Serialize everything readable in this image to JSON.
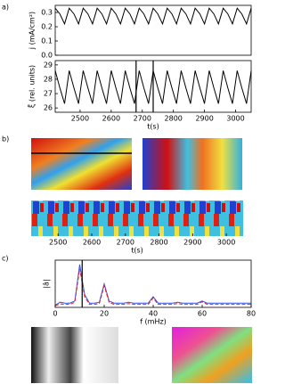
{
  "panel_labels": [
    "a)",
    "b)",
    "c)"
  ],
  "chart_data": [
    {
      "type": "line",
      "y_label": "j (mA/cm²)",
      "x": [
        2420,
        2435,
        2450,
        2465,
        2480,
        2495,
        2510,
        2525,
        2540,
        2555,
        2570,
        2585,
        2600,
        2615,
        2630,
        2645,
        2660,
        2675,
        2690,
        2705,
        2720,
        2735,
        2750,
        2765,
        2780,
        2795,
        2810,
        2825,
        2840,
        2855,
        2870,
        2885,
        2900,
        2915,
        2930,
        2945,
        2960,
        2975,
        2990,
        3005,
        3020,
        3035,
        3050
      ],
      "series": [
        {
          "color": "#000000",
          "values": [
            0.33,
            0.29,
            0.22,
            0.33,
            0.29,
            0.22,
            0.33,
            0.29,
            0.22,
            0.33,
            0.29,
            0.22,
            0.33,
            0.29,
            0.22,
            0.33,
            0.29,
            0.22,
            0.33,
            0.29,
            0.22,
            0.33,
            0.29,
            0.22,
            0.33,
            0.29,
            0.22,
            0.33,
            0.29,
            0.22,
            0.33,
            0.29,
            0.22,
            0.33,
            0.29,
            0.22,
            0.33,
            0.29,
            0.22,
            0.33,
            0.29,
            0.22,
            0.33
          ]
        }
      ],
      "xlim": [
        2420,
        3050
      ],
      "ylim": [
        0,
        0.35
      ],
      "yticks": [
        {
          "value": 0,
          "label": "0.0"
        },
        0.1,
        0.2,
        0.3
      ]
    },
    {
      "type": "line",
      "y_label": "ξ̃ (rel. units)",
      "x_label": "t(s)",
      "x": [
        2420,
        2435,
        2450,
        2465,
        2480,
        2495,
        2510,
        2525,
        2540,
        2555,
        2570,
        2585,
        2600,
        2615,
        2630,
        2645,
        2660,
        2675,
        2690,
        2705,
        2720,
        2735,
        2750,
        2765,
        2780,
        2795,
        2810,
        2825,
        2840,
        2855,
        2870,
        2885,
        2900,
        2915,
        2930,
        2945,
        2960,
        2975,
        2990,
        3005,
        3020,
        3035,
        3050
      ],
      "series": [
        {
          "color": "#000000",
          "values": [
            28.6,
            27.4,
            26.3,
            28.6,
            27.4,
            26.3,
            28.6,
            27.4,
            26.3,
            28.6,
            27.4,
            26.3,
            28.6,
            27.4,
            26.3,
            28.6,
            27.4,
            26.3,
            28.6,
            27.4,
            26.3,
            28.6,
            27.4,
            26.3,
            28.6,
            27.4,
            26.3,
            28.6,
            27.4,
            26.3,
            28.6,
            27.4,
            26.3,
            28.6,
            27.4,
            26.3,
            28.6,
            27.4,
            26.3,
            28.6,
            27.4,
            26.3,
            28.6
          ]
        }
      ],
      "xlim": [
        2420,
        3050
      ],
      "ylim": [
        25.7,
        29.3
      ],
      "xticks": [
        2500,
        2600,
        2700,
        2800,
        2900,
        3000
      ],
      "yticks": [
        26,
        27,
        28,
        29
      ],
      "vlines": [
        2680,
        2735
      ]
    },
    {
      "type": "heatmap",
      "x_label": "t(s)",
      "xlim": [
        2420,
        3050
      ],
      "xticks": [
        2500,
        2600,
        2700,
        2800,
        2900,
        3000
      ]
    },
    {
      "type": "line",
      "y_label": "|â|",
      "x_label": "f (mHz)",
      "x": [
        0,
        2,
        4,
        6,
        8,
        10,
        12,
        14,
        16,
        18,
        20,
        22,
        24,
        26,
        28,
        30,
        32,
        34,
        36,
        38,
        40,
        42,
        44,
        46,
        48,
        50,
        52,
        54,
        56,
        58,
        60,
        62,
        64,
        66,
        68,
        70,
        72,
        74,
        76,
        78,
        80
      ],
      "series": [
        {
          "color": "#3355ee",
          "values": [
            0.05,
            0.12,
            0.1,
            0.1,
            0.15,
            1.0,
            0.3,
            0.1,
            0.1,
            0.12,
            0.55,
            0.15,
            0.1,
            0.1,
            0.1,
            0.12,
            0.1,
            0.1,
            0.1,
            0.1,
            0.25,
            0.1,
            0.1,
            0.1,
            0.1,
            0.12,
            0.1,
            0.1,
            0.1,
            0.1,
            0.15,
            0.1,
            0.1,
            0.1,
            0.1,
            0.1,
            0.1,
            0.1,
            0.1,
            0.1,
            0.1
          ]
        },
        {
          "color": "#dd2222",
          "dashed": true,
          "values": [
            0.04,
            0.08,
            0.07,
            0.07,
            0.12,
            0.9,
            0.25,
            0.07,
            0.07,
            0.09,
            0.5,
            0.12,
            0.07,
            0.07,
            0.07,
            0.09,
            0.07,
            0.07,
            0.07,
            0.07,
            0.22,
            0.07,
            0.07,
            0.07,
            0.07,
            0.09,
            0.07,
            0.07,
            0.07,
            0.07,
            0.13,
            0.07,
            0.07,
            0.07,
            0.07,
            0.07,
            0.07,
            0.07,
            0.07,
            0.07,
            0.07
          ]
        }
      ],
      "xlim": [
        0,
        80
      ],
      "ylim": [
        0,
        1.1
      ],
      "xticks": [
        0,
        20,
        40,
        60,
        80
      ],
      "vlines": [
        11
      ]
    }
  ]
}
